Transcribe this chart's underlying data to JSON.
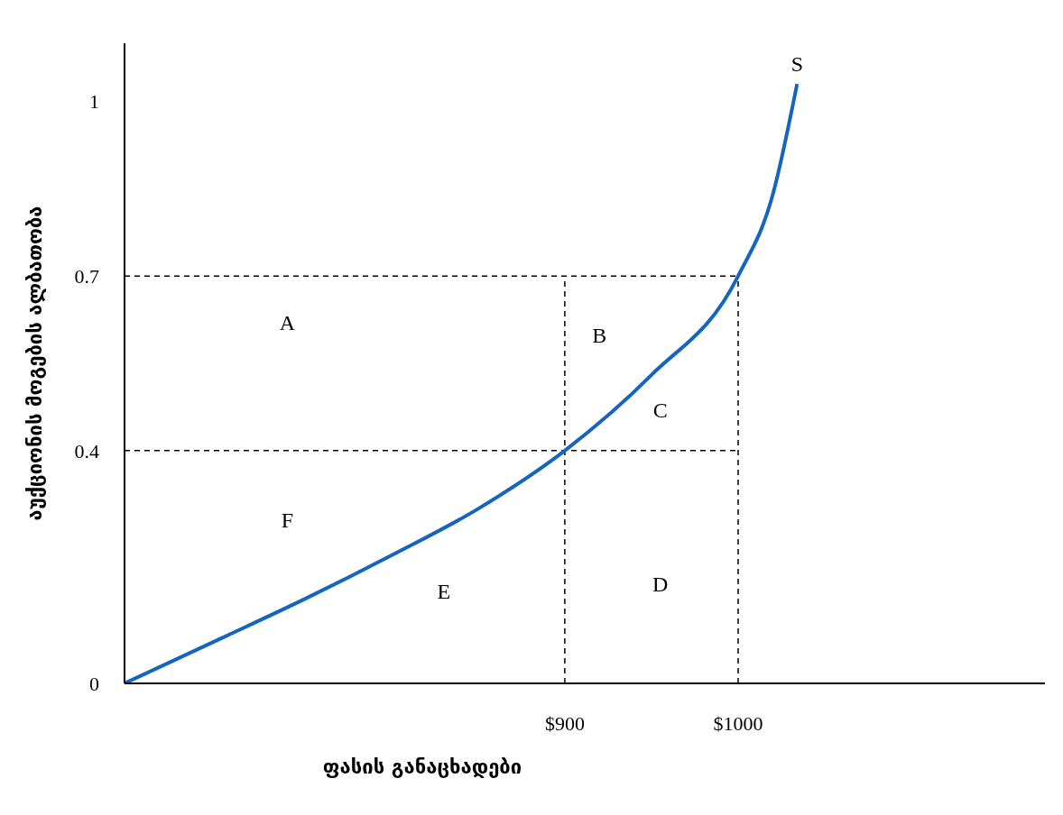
{
  "chart_data": {
    "type": "line",
    "xlabel": "ფასის განაცხადები",
    "ylabel": "აუქციონის მოგების ალბათობა",
    "x": [
      646,
      700,
      750,
      800,
      850,
      900,
      950,
      1000,
      1020,
      1034
    ],
    "series": [
      {
        "color": "#1565c0",
        "values": [
          0,
          0.075,
          0.145,
          0.22,
          0.3,
          0.4,
          0.53,
          0.7,
          0.84,
          1.03
        ]
      }
    ],
    "xlim": [
      646,
      1177
    ],
    "xticks": [
      {
        "value": 900,
        "label": "$900"
      },
      {
        "value": 1000,
        "label": "$1000"
      }
    ],
    "ylim": [
      0,
      1.1
    ],
    "yticks": [
      0,
      0.4,
      0.7,
      1
    ],
    "grid": false,
    "legend": false,
    "marker": "none",
    "line_style": "solid",
    "ref_lines": [
      {
        "axis": "y",
        "value": 0.4,
        "line_style": "dashed",
        "color": "#000000"
      },
      {
        "axis": "y",
        "value": 0.7,
        "line_style": "dashed",
        "color": "#000000"
      },
      {
        "axis": "x",
        "value": 900,
        "line_style": "dashed",
        "color": "#000000"
      },
      {
        "axis": "x",
        "value": 1000,
        "line_style": "dashed",
        "color": "#000000"
      }
    ],
    "annotations": [
      "A",
      "B",
      "C",
      "D",
      "E",
      "F",
      {
        "text": "S",
        "x": 1034,
        "y": 1.03
      }
    ]
  }
}
